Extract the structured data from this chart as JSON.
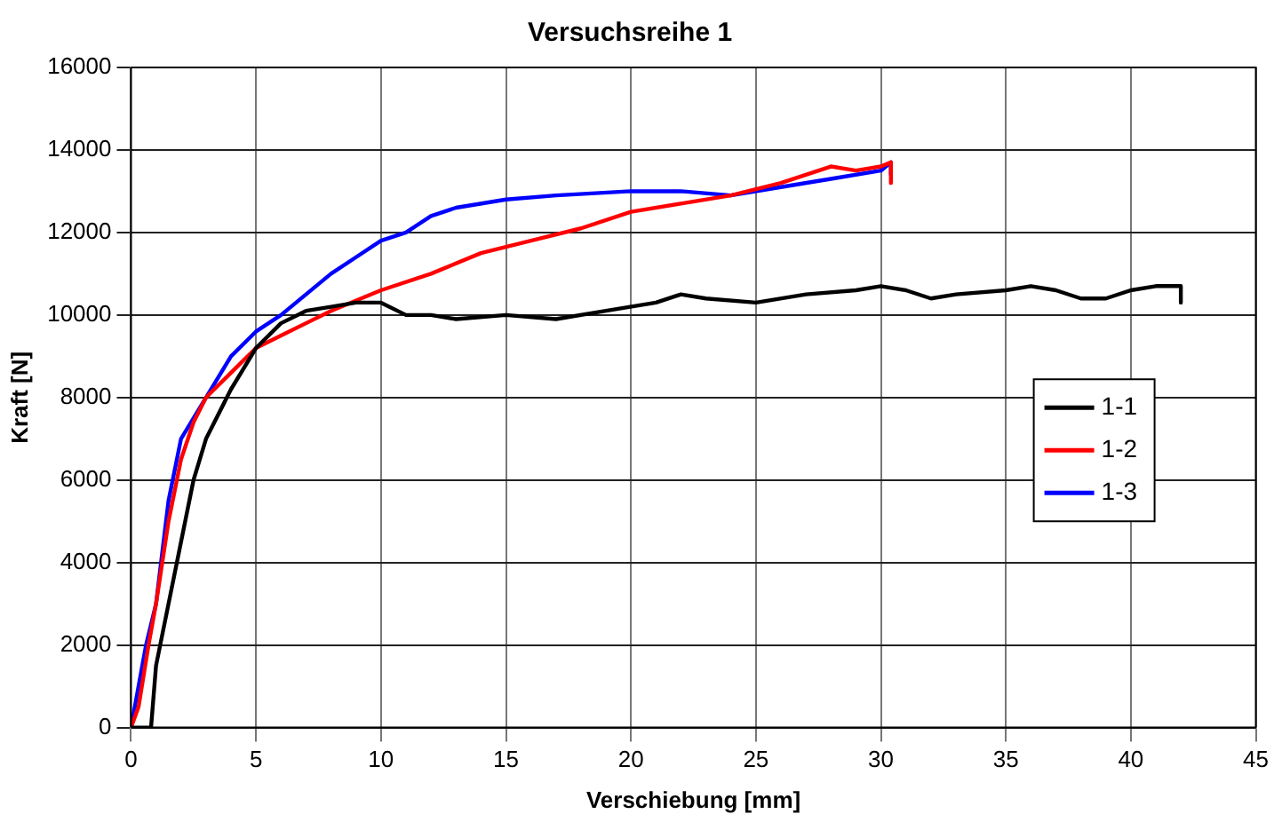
{
  "chart_data": {
    "type": "line",
    "title": "Versuchsreihe 1",
    "xlabel": "Verschiebung [mm]",
    "ylabel": "Kraft [N]",
    "xlim": [
      0,
      45
    ],
    "xticks": [
      0,
      5,
      10,
      15,
      20,
      25,
      30,
      35,
      40,
      45
    ],
    "ylim": [
      0,
      16000
    ],
    "yticks": [
      0,
      2000,
      4000,
      6000,
      8000,
      10000,
      12000,
      14000,
      16000
    ],
    "grid": true,
    "legend": "right",
    "marker": "none",
    "line_style": "solid",
    "series": [
      {
        "name": "1-1",
        "color": "#000000",
        "x": [
          0,
          0.8,
          1,
          1.5,
          2,
          2.5,
          3,
          4,
          5,
          6,
          7,
          8,
          9,
          10,
          11,
          12,
          13,
          15,
          17,
          19,
          21,
          22,
          23,
          25,
          27,
          29,
          30,
          31,
          32,
          33,
          35,
          36,
          37,
          38,
          39,
          40,
          41,
          42,
          42
        ],
        "values": [
          0,
          0,
          1500,
          3000,
          4500,
          6000,
          7000,
          8200,
          9200,
          9800,
          10100,
          10200,
          10300,
          10300,
          10000,
          10000,
          9900,
          10000,
          9900,
          10100,
          10300,
          10500,
          10400,
          10300,
          10500,
          10600,
          10700,
          10600,
          10400,
          10500,
          10600,
          10700,
          10600,
          10400,
          10400,
          10600,
          10700,
          10700,
          10300
        ]
      },
      {
        "name": "1-2",
        "color": "#ff0000",
        "x": [
          0,
          0.3,
          0.7,
          1,
          1.5,
          2,
          2.5,
          3,
          4,
          5,
          6,
          7,
          8,
          10,
          12,
          14,
          16,
          18,
          20,
          22,
          24,
          26,
          28,
          29,
          30,
          30.4,
          30.4
        ],
        "values": [
          0,
          500,
          2000,
          3000,
          5000,
          6500,
          7400,
          8000,
          8600,
          9200,
          9500,
          9800,
          10100,
          10600,
          11000,
          11500,
          11800,
          12100,
          12500,
          12700,
          12900,
          13200,
          13600,
          13500,
          13600,
          13700,
          13200
        ]
      },
      {
        "name": "1-3",
        "color": "#0000ff",
        "x": [
          0,
          0.3,
          0.6,
          1,
          1.5,
          2,
          2.5,
          3,
          4,
          5,
          6,
          7,
          8,
          9,
          10,
          11,
          12,
          13,
          15,
          17,
          20,
          22,
          24,
          26,
          28,
          30,
          30.4,
          30.4
        ],
        "values": [
          0,
          1000,
          2000,
          3000,
          5500,
          7000,
          7500,
          8000,
          9000,
          9600,
          10000,
          10500,
          11000,
          11400,
          11800,
          12000,
          12400,
          12600,
          12800,
          12900,
          13000,
          13000,
          12900,
          13100,
          13300,
          13500,
          13700,
          13400
        ]
      }
    ]
  }
}
